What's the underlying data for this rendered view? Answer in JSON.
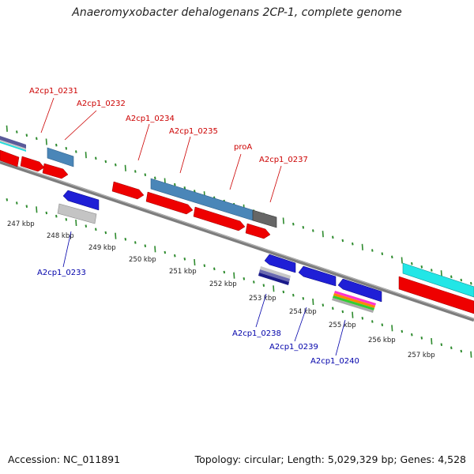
{
  "title": "Anaeromyxobacter dehalogenans 2CP-1, complete genome",
  "footer": {
    "accession": "Accession: NC_011891",
    "summary": "Topology: circular; Length: 5,029,329 bp; Genes: 4,528"
  },
  "colors": {
    "backbone": "#8c8c8c",
    "tick": "#2e8b2e",
    "forward_label": "#cc0000",
    "reverse_label": "#0000aa",
    "cds_red": "#ee0000",
    "cds_blue": "#1f1fd6",
    "steel": "#4682b4",
    "cyan": "#22e6e6",
    "grey": "#666666"
  },
  "tick_labels": [
    "247 kbp",
    "248 kbp",
    "249 kbp",
    "250 kbp",
    "251 kbp",
    "252 kbp",
    "253 kbp",
    "254 kbp",
    "255 kbp",
    "256 kbp",
    "257 kbp"
  ],
  "forward_genes": [
    "A2cp1_0231",
    "A2cp1_0232",
    "A2cp1_0234",
    "A2cp1_0235",
    "proA",
    "A2cp1_0237"
  ],
  "reverse_genes": [
    "A2cp1_0233",
    "A2cp1_0238",
    "A2cp1_0239",
    "A2cp1_0240"
  ]
}
